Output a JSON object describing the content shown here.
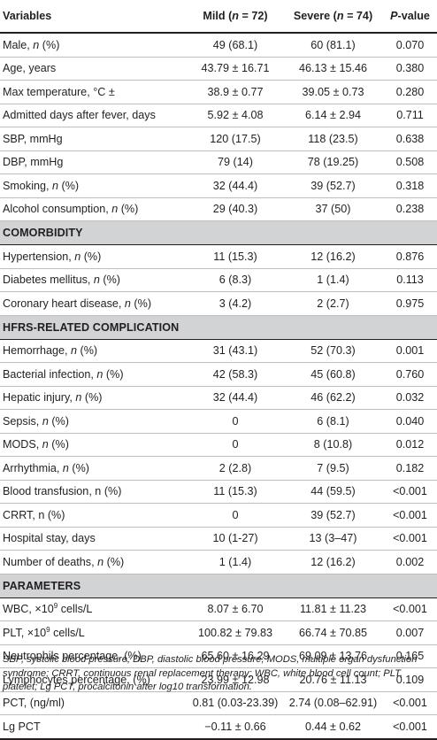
{
  "header": {
    "variables": "Variables",
    "mild_label": "Mild (",
    "mild_n": "n",
    "mild_count": " = 72)",
    "severe_label": "Severe (",
    "severe_n": "n",
    "severe_count": " = 74)",
    "p_prefix": "P",
    "p_suffix": "-value"
  },
  "demographics": [
    {
      "label": "Male, ",
      "ital": "n",
      "unit": " (%)",
      "mild": "49 (68.1)",
      "severe": "60 (81.1)",
      "p": "0.070"
    },
    {
      "label": "Age, years",
      "ital": "",
      "unit": "",
      "mild": "43.79 ± 16.71",
      "severe": "46.13 ± 15.46",
      "p": "0.380"
    },
    {
      "label": "Max temperature, °C ±",
      "ital": "",
      "unit": "",
      "mild": "38.9 ± 0.77",
      "severe": "39.05 ± 0.73",
      "p": "0.280"
    },
    {
      "label": "Admitted days after fever, days",
      "ital": "",
      "unit": "",
      "mild": "5.92 ± 4.08",
      "severe": "6.14 ± 2.94",
      "p": "0.711"
    },
    {
      "label": "SBP, mmHg",
      "ital": "",
      "unit": "",
      "mild": "120 (17.5)",
      "severe": "118 (23.5)",
      "p": "0.638"
    },
    {
      "label": "DBP, mmHg",
      "ital": "",
      "unit": "",
      "mild": "79 (14)",
      "severe": "78 (19.25)",
      "p": "0.508"
    },
    {
      "label": "Smoking, ",
      "ital": "n",
      "unit": " (%)",
      "mild": "32 (44.4)",
      "severe": "39 (52.7)",
      "p": "0.318"
    },
    {
      "label": "Alcohol consumption, ",
      "ital": "n",
      "unit": " (%)",
      "mild": "29 (40.3)",
      "severe": "37 (50)",
      "p": "0.238"
    }
  ],
  "comorbidity": {
    "title": "COMORBIDITY",
    "rows": [
      {
        "label": "Hypertension, ",
        "ital": "n",
        "unit": " (%)",
        "mild": "11 (15.3)",
        "severe": "12 (16.2)",
        "p": "0.876"
      },
      {
        "label": "Diabetes mellitus, ",
        "ital": "n",
        "unit": " (%)",
        "mild": "6 (8.3)",
        "severe": "1 (1.4)",
        "p": "0.113"
      },
      {
        "label": "Coronary heart disease, ",
        "ital": "n",
        "unit": " (%)",
        "mild": "3 (4.2)",
        "severe": "2 (2.7)",
        "p": "0.975"
      }
    ]
  },
  "complication": {
    "title": "HFRS-RELATED COMPLICATION",
    "rows": [
      {
        "label": "Hemorrhage, ",
        "ital": "n",
        "unit": " (%)",
        "mild": "31 (43.1)",
        "severe": "52 (70.3)",
        "p": "0.001"
      },
      {
        "label": "Bacterial infection, ",
        "ital": "n",
        "unit": " (%)",
        "mild": "42 (58.3)",
        "severe": "45 (60.8)",
        "p": "0.760"
      },
      {
        "label": "Hepatic injury, ",
        "ital": "n",
        "unit": " (%)",
        "mild": "32 (44.4)",
        "severe": "46 (62.2)",
        "p": "0.032"
      },
      {
        "label": "Sepsis, ",
        "ital": "n",
        "unit": " (%)",
        "mild": "0",
        "severe": "6 (8.1)",
        "p": "0.040"
      },
      {
        "label": "MODS, ",
        "ital": "n",
        "unit": " (%)",
        "mild": "0",
        "severe": "8 (10.8)",
        "p": "0.012"
      },
      {
        "label": "Arrhythmia, ",
        "ital": "n",
        "unit": " (%)",
        "mild": "2 (2.8)",
        "severe": "7 (9.5)",
        "p": "0.182"
      },
      {
        "label": "Blood transfusion, n (%)",
        "ital": "",
        "unit": "",
        "mild": "11 (15.3)",
        "severe": "44 (59.5)",
        "p": "<0.001"
      },
      {
        "label": "CRRT, n (%)",
        "ital": "",
        "unit": "",
        "mild": "0",
        "severe": "39 (52.7)",
        "p": "<0.001"
      },
      {
        "label": "Hospital stay, days",
        "ital": "",
        "unit": "",
        "mild": "10 (1-27)",
        "severe": "13 (3–47)",
        "p": "<0.001"
      },
      {
        "label": "Number of deaths, ",
        "ital": "n",
        "unit": " (%)",
        "mild": "1 (1.4)",
        "severe": "12 (16.2)",
        "p": "0.002"
      }
    ]
  },
  "parameters": {
    "title": "PARAMETERS",
    "rows": [
      {
        "label": "WBC, ×10",
        "sup": "9",
        "after": " cells/L",
        "mild": "8.07 ± 6.70",
        "severe": "11.81 ± 11.23",
        "p": "<0.001"
      },
      {
        "label": "PLT, ×10",
        "sup": "9",
        "after": " cells/L",
        "mild": "100.82 ± 79.83",
        "severe": "66.74 ± 70.85",
        "p": "0.007"
      },
      {
        "label": "Neutrophils percentage, (%)",
        "sup": "",
        "after": "",
        "mild": "65.60 ± 16.29",
        "severe": "69.09 ± 13.76",
        "p": "0.165"
      },
      {
        "label": "Lymphocytes percentage, (%)",
        "sup": "",
        "after": "",
        "mild": "23.99 ± 12.98",
        "severe": "20.76 ± 11.13",
        "p": "0.109"
      },
      {
        "label": "PCT, (ng/ml)",
        "sup": "",
        "after": "",
        "mild": "0.81 (0.03-23.39)",
        "severe": "2.74 (0.08–62.91)",
        "p": "<0.001"
      },
      {
        "label": "Lg PCT",
        "sup": "",
        "after": "",
        "mild": "−0.11 ± 0.66",
        "severe": "0.44 ± 0.62",
        "p": "<0.001"
      }
    ]
  },
  "footnote": "SBP, systolic blood pressure; DBP, diastolic blood pressure; MODS, multiple organ dysfunction syndrome; CRRT, continuous renal replacement therapy; WBC, white blood cell count; PLT, platelet; Lg PCT, procalcitonin after log10 transformation."
}
